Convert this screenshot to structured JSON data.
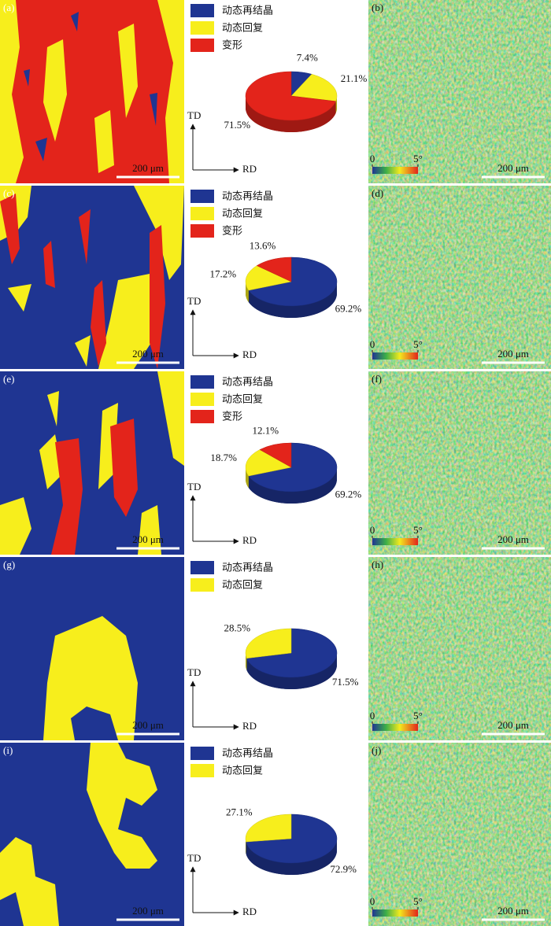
{
  "chart_data": [
    {
      "type": "pie",
      "panel_labels": [
        "(a)",
        "(b)"
      ],
      "categories": [
        "动态再结晶",
        "动态回复",
        "变形"
      ],
      "colors": [
        "#1f3592",
        "#f7ee1c",
        "#e3241b"
      ],
      "values": [
        7.4,
        21.1,
        71.5
      ],
      "value_labels": [
        "7.4%",
        "21.1%",
        "71.5%"
      ],
      "axis_labels": {
        "y": "TD",
        "x": "RD"
      },
      "scale_bar": "200 μm",
      "colorbar_lim": [
        0,
        5
      ],
      "colorbar_ticks": [
        0,
        {
          "value": 5,
          "label": "5°"
        }
      ]
    },
    {
      "type": "pie",
      "panel_labels": [
        "(c)",
        "(d)"
      ],
      "categories": [
        "动态再结晶",
        "动态回复",
        "变形"
      ],
      "colors": [
        "#1f3592",
        "#f7ee1c",
        "#e3241b"
      ],
      "values": [
        69.2,
        17.2,
        13.6
      ],
      "value_labels": [
        "69.2%",
        "17.2%",
        "13.6%"
      ],
      "axis_labels": {
        "y": "TD",
        "x": "RD"
      },
      "scale_bar": "200 μm",
      "colorbar_lim": [
        0,
        5
      ],
      "colorbar_ticks": [
        0,
        {
          "value": 5,
          "label": "5°"
        }
      ]
    },
    {
      "type": "pie",
      "panel_labels": [
        "(e)",
        "(f)"
      ],
      "categories": [
        "动态再结晶",
        "动态回复",
        "变形"
      ],
      "colors": [
        "#1f3592",
        "#f7ee1c",
        "#e3241b"
      ],
      "values": [
        69.2,
        18.7,
        12.1
      ],
      "value_labels": [
        "69.2%",
        "18.7%",
        "12.1%"
      ],
      "axis_labels": {
        "y": "TD",
        "x": "RD"
      },
      "scale_bar": "200 μm",
      "colorbar_lim": [
        0,
        5
      ],
      "colorbar_ticks": [
        0,
        {
          "value": 5,
          "label": "5°"
        }
      ]
    },
    {
      "type": "pie",
      "panel_labels": [
        "(g)",
        "(h)"
      ],
      "categories": [
        "动态再结晶",
        "动态回复"
      ],
      "colors": [
        "#1f3592",
        "#f7ee1c"
      ],
      "values": [
        71.5,
        28.5
      ],
      "value_labels": [
        "71.5%",
        "28.5%"
      ],
      "axis_labels": {
        "y": "TD",
        "x": "RD"
      },
      "scale_bar": "200 μm",
      "colorbar_lim": [
        0,
        5
      ],
      "colorbar_ticks": [
        0,
        {
          "value": 5,
          "label": "5°"
        }
      ]
    },
    {
      "type": "pie",
      "panel_labels": [
        "(i)",
        "(j)"
      ],
      "categories": [
        "动态再结晶",
        "动态回复"
      ],
      "colors": [
        "#1f3592",
        "#f7ee1c"
      ],
      "values": [
        72.9,
        27.1
      ],
      "value_labels": [
        "72.9%",
        "27.1%"
      ],
      "axis_labels": {
        "y": "TD",
        "x": "RD"
      },
      "scale_bar": "200 μm",
      "colorbar_lim": [
        0,
        5
      ],
      "colorbar_ticks": [
        0,
        {
          "value": 5,
          "label": "5°"
        }
      ]
    }
  ]
}
